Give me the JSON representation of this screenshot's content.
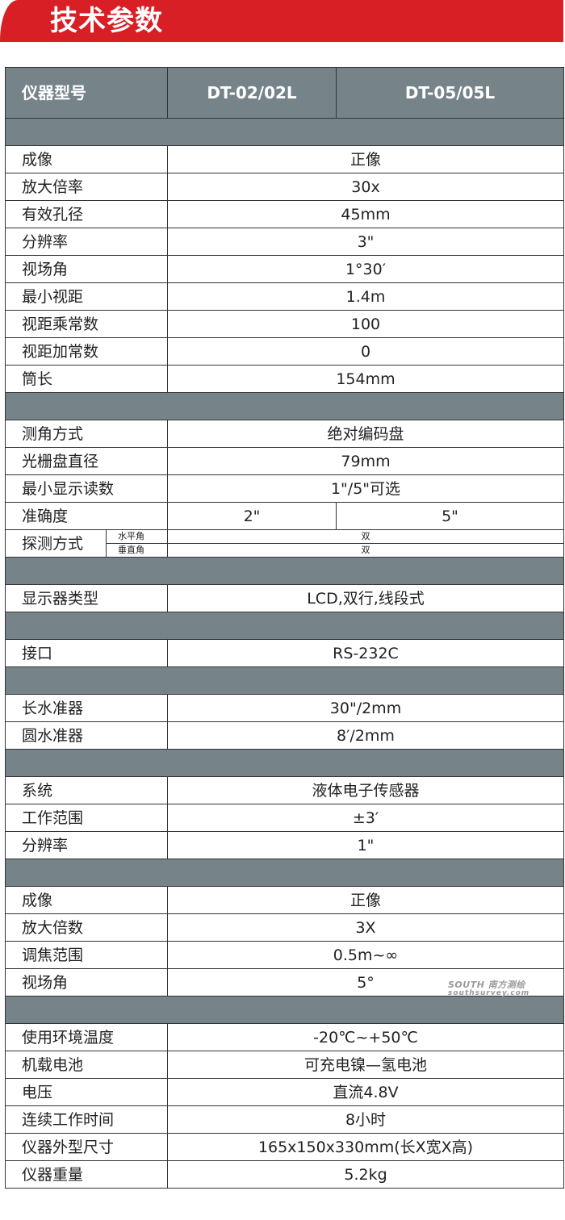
{
  "title": "技术参数",
  "header": {
    "label": "仪器型号",
    "models": [
      "DT-02/02L",
      "DT-05/05L"
    ]
  },
  "colors": {
    "banner": "#d81f26",
    "header_bg": "#76848a"
  },
  "watermark": {
    "logo": "SOUTH 南方测绘",
    "url": "southsurvey.com"
  },
  "rows": [
    {
      "type": "section"
    },
    {
      "label": "成像",
      "value": "正像"
    },
    {
      "label": "放大倍率",
      "value": "30x"
    },
    {
      "label": "有效孔径",
      "value": "45mm"
    },
    {
      "label": "分辨率",
      "value": "3\""
    },
    {
      "label": "视场角",
      "value": "1°30′"
    },
    {
      "label": "最小视距",
      "value": "1.4m"
    },
    {
      "label": "视距乘常数",
      "value": "100"
    },
    {
      "label": "视距加常数",
      "value": "0"
    },
    {
      "label": "筒长",
      "value": "154mm"
    },
    {
      "type": "section"
    },
    {
      "label": "测角方式",
      "value": "绝对编码盘"
    },
    {
      "label": "光栅盘直径",
      "value": "79mm"
    },
    {
      "label": "最小显示读数",
      "value": "1\"/5\"可选"
    },
    {
      "label": "准确度",
      "values": [
        "2\"",
        "5\""
      ]
    },
    {
      "type": "split",
      "label": "探测方式",
      "subs": [
        {
          "label": "水平角",
          "value": "双"
        },
        {
          "label": "垂直角",
          "value": "双"
        }
      ]
    },
    {
      "type": "section"
    },
    {
      "label": "显示器类型",
      "value": "LCD,双行,线段式"
    },
    {
      "type": "section"
    },
    {
      "label": "接口",
      "value": "RS-232C"
    },
    {
      "type": "section"
    },
    {
      "label": "长水准器",
      "value": "30\"/2mm"
    },
    {
      "label": "圆水准器",
      "value": "8′/2mm"
    },
    {
      "type": "section"
    },
    {
      "label": "系统",
      "value": "液体电子传感器"
    },
    {
      "label": "工作范围",
      "value": "±3′"
    },
    {
      "label": "分辨率",
      "value": "1\""
    },
    {
      "type": "section"
    },
    {
      "label": "成像",
      "value": "正像"
    },
    {
      "label": "放大倍数",
      "value": "3X"
    },
    {
      "label": "调焦范围",
      "value": "0.5m~∞"
    },
    {
      "label": "视场角",
      "value": "5°"
    },
    {
      "type": "section"
    },
    {
      "label": "使用环境温度",
      "value": "-20℃~+50℃"
    },
    {
      "label": "机载电池",
      "value": "可充电镍—氢电池"
    },
    {
      "label": "电压",
      "value": "直流4.8V"
    },
    {
      "label": "连续工作时间",
      "value": "8小时"
    },
    {
      "label": "仪器外型尺寸",
      "value": "165x150x330mm(长X宽X高)"
    },
    {
      "label": "仪器重量",
      "value": "5.2kg"
    }
  ]
}
